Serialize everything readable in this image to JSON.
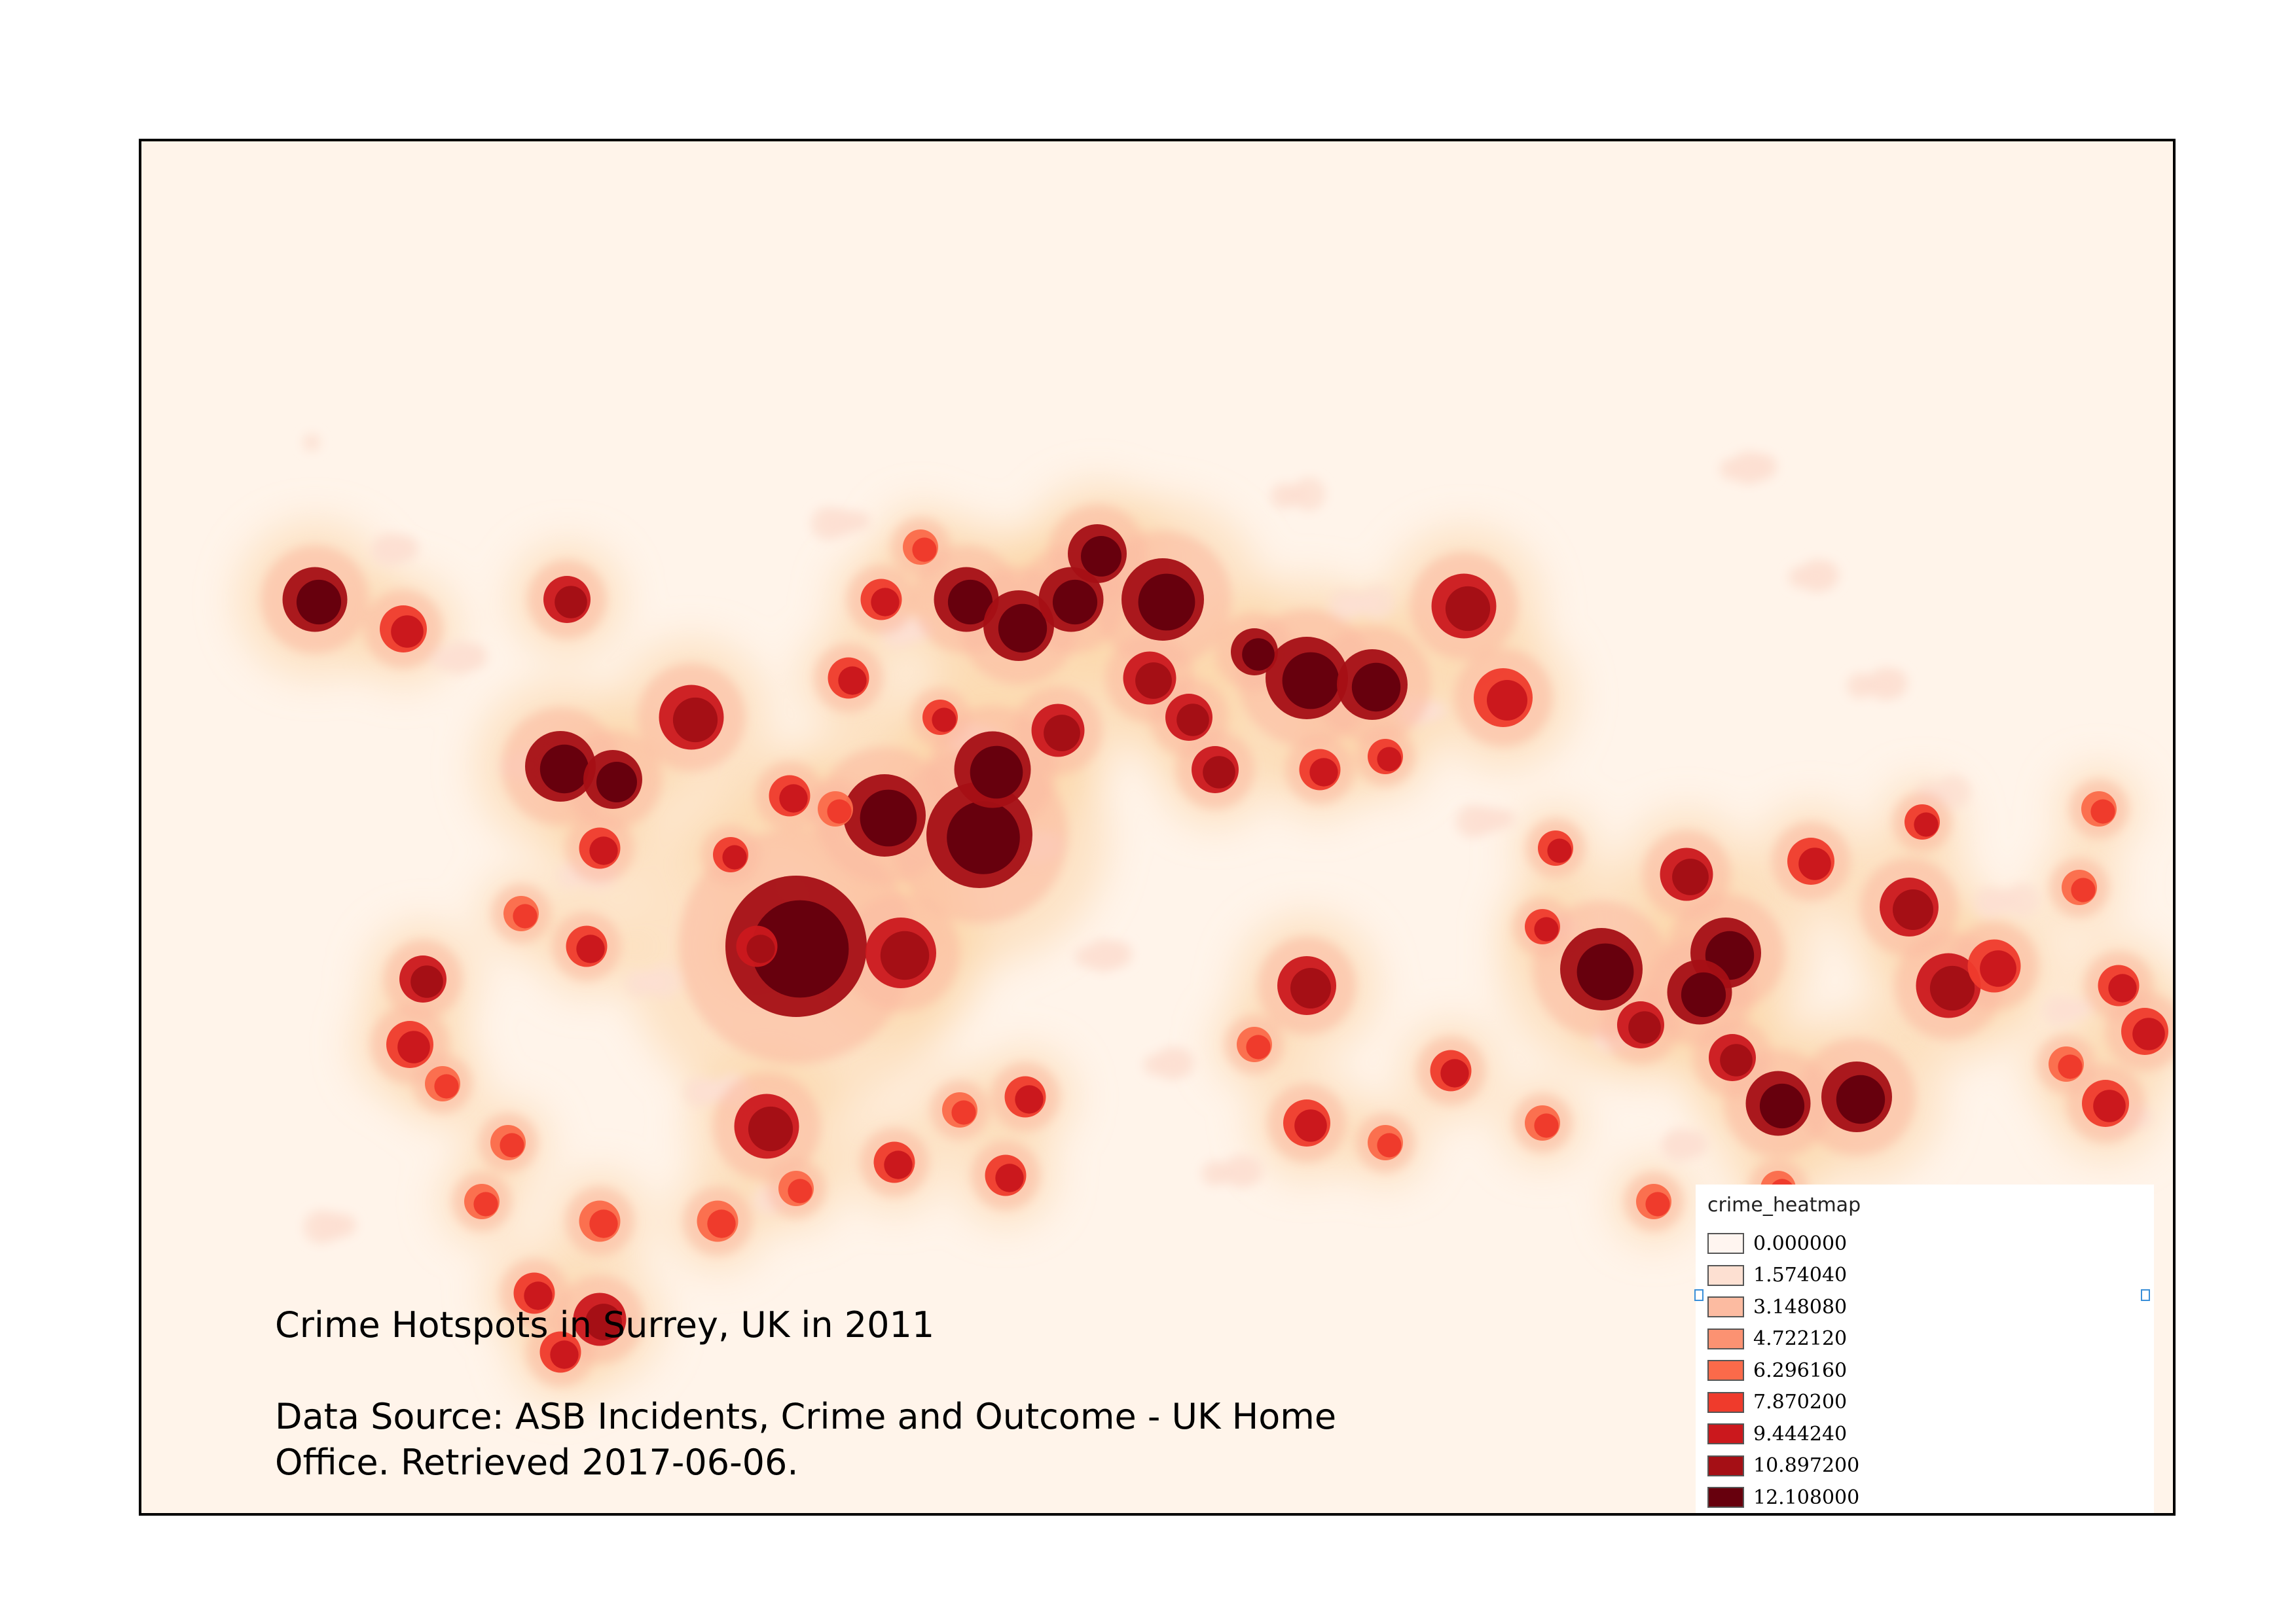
{
  "map": {
    "layer_name": "crime_heatmap",
    "colors": {
      "background": "#fff4ea",
      "frame": "#000000"
    }
  },
  "title": "Crime Hotspots in Surrey, UK in 2011",
  "source": "Data Source: ASB Incidents, Crime and Outcome - UK Home Office. Retrieved 2017-06-06.",
  "legend": {
    "title": "crime_heatmap",
    "items": [
      {
        "label": "0.000000",
        "value": 0.0,
        "color": "#fff5f0"
      },
      {
        "label": "1.574040",
        "value": 1.57404,
        "color": "#fde0d2"
      },
      {
        "label": "3.148080",
        "value": 3.14808,
        "color": "#fcbba1"
      },
      {
        "label": "4.722120",
        "value": 4.72212,
        "color": "#fc9272"
      },
      {
        "label": "6.296160",
        "value": 6.29616,
        "color": "#fb6a4a"
      },
      {
        "label": "7.870200",
        "value": 7.8702,
        "color": "#ef3b2c"
      },
      {
        "label": "9.444240",
        "value": 9.44424,
        "color": "#cb181d"
      },
      {
        "label": "10.897200",
        "value": 10.8972,
        "color": "#a50f15"
      },
      {
        "label": "12.108000",
        "value": 12.108,
        "color": "#67000d"
      }
    ]
  }
}
